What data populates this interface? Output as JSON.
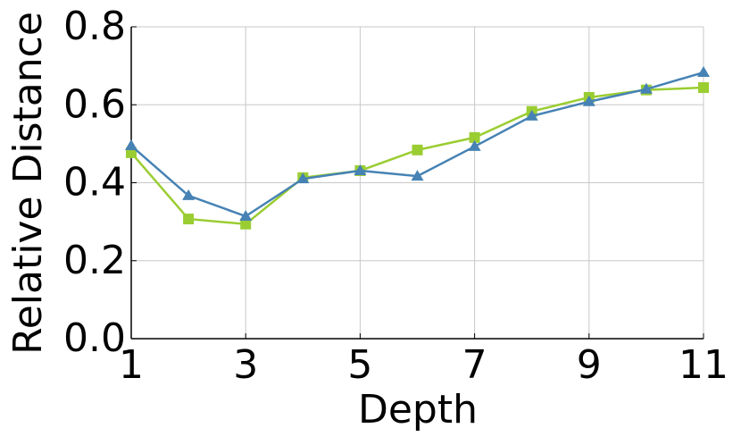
{
  "chart_data": {
    "type": "line",
    "x_label": "Depth",
    "y_label": "Relative Distance",
    "x": [
      1,
      2,
      3,
      4,
      5,
      6,
      7,
      8,
      9,
      10,
      11
    ],
    "series": [
      {
        "color": "#9acd32",
        "marker": "square",
        "values": [
          0.477,
          0.307,
          0.294,
          0.413,
          0.431,
          0.484,
          0.516,
          0.583,
          0.619,
          0.638,
          0.644
        ]
      },
      {
        "color": "#4682b4",
        "marker": "triangle",
        "values": [
          0.495,
          0.367,
          0.314,
          0.41,
          0.431,
          0.417,
          0.493,
          0.571,
          0.608,
          0.64,
          0.683
        ]
      }
    ],
    "xlim": [
      1,
      11
    ],
    "xticks": [
      1,
      3,
      5,
      7,
      9,
      11
    ],
    "ylim": [
      0,
      0.8
    ],
    "yticks": [
      {
        "value": 0,
        "label": "0.0"
      },
      0.2,
      0.4,
      0.6,
      0.8
    ],
    "grid": true
  }
}
